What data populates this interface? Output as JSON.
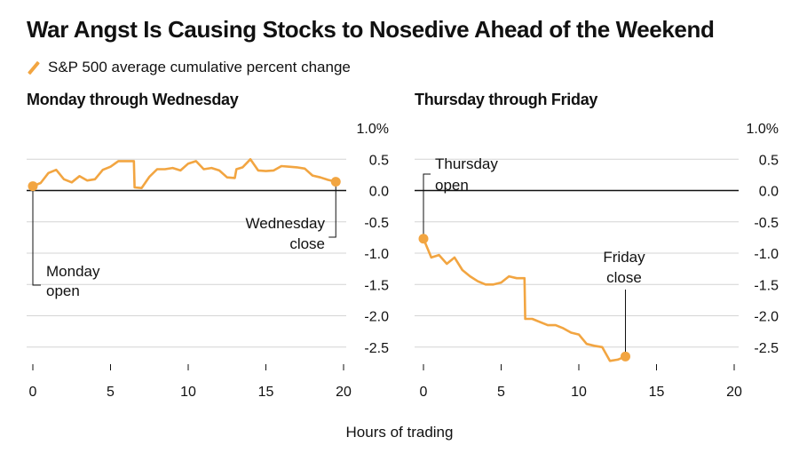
{
  "title": "War Angst Is Causing Stocks to Nosedive Ahead of the Weekend",
  "legend_label": "S&P 500 average cumulative percent change",
  "xaxis_label": "Hours of trading",
  "accent_color": "#f2a541",
  "chart_data": [
    {
      "type": "line",
      "title": "Monday through Wednesday",
      "xlabel": "Hours of trading",
      "ylabel": "",
      "xlim": [
        0,
        20
      ],
      "ylim": [
        -2.5,
        1.0
      ],
      "x_ticks": [
        0,
        5,
        10,
        15,
        20
      ],
      "y_ticks": [
        1.0,
        0.5,
        0.0,
        -0.5,
        -1.0,
        -1.5,
        -2.0,
        -2.5
      ],
      "y_tick_labels": [
        "1.0%",
        "0.5",
        "0.0",
        "-0.5",
        "-1.0",
        "-1.5",
        "-2.0",
        "-2.5"
      ],
      "series": [
        {
          "name": "S&P 500 average cumulative percent change",
          "x": [
            0,
            0.5,
            1.0,
            1.5,
            2.0,
            2.5,
            3.0,
            3.5,
            4.0,
            4.5,
            5.0,
            5.5,
            6.0,
            6.5,
            6.55,
            7.0,
            7.5,
            8.0,
            8.5,
            9.0,
            9.5,
            10.0,
            10.5,
            11.0,
            11.5,
            12.0,
            12.5,
            13.0,
            13.1,
            13.5,
            14.0,
            14.5,
            15.0,
            15.5,
            16.0,
            16.5,
            17.0,
            17.5,
            18.0,
            18.5,
            19.0,
            19.5
          ],
          "values": [
            0.07,
            0.12,
            0.28,
            0.33,
            0.18,
            0.13,
            0.23,
            0.16,
            0.18,
            0.33,
            0.38,
            0.47,
            0.47,
            0.47,
            0.05,
            0.04,
            0.22,
            0.34,
            0.34,
            0.36,
            0.32,
            0.43,
            0.47,
            0.34,
            0.36,
            0.32,
            0.21,
            0.2,
            0.34,
            0.37,
            0.5,
            0.32,
            0.31,
            0.32,
            0.39,
            0.38,
            0.37,
            0.35,
            0.24,
            0.21,
            0.17,
            0.14
          ]
        }
      ],
      "annotations": [
        {
          "text_lines": [
            "Monday",
            "open"
          ],
          "x": 0,
          "y": 0.07
        },
        {
          "text_lines": [
            "Wednesday",
            "close"
          ],
          "x": 19.5,
          "y": 0.14
        }
      ]
    },
    {
      "type": "line",
      "title": "Thursday through Friday",
      "xlabel": "Hours of trading",
      "ylabel": "",
      "xlim": [
        0,
        20
      ],
      "ylim": [
        -2.5,
        1.0
      ],
      "x_ticks": [
        0,
        5,
        10,
        15,
        20
      ],
      "y_ticks": [
        1.0,
        0.5,
        0.0,
        -0.5,
        -1.0,
        -1.5,
        -2.0,
        -2.5
      ],
      "y_tick_labels": [
        "1.0%",
        "0.5",
        "0.0",
        "-0.5",
        "-1.0",
        "-1.5",
        "-2.0",
        "-2.5"
      ],
      "series": [
        {
          "name": "S&P 500 average cumulative percent change",
          "x": [
            0,
            0.5,
            1.0,
            1.5,
            2.0,
            2.5,
            3.0,
            3.5,
            4.0,
            4.5,
            5.0,
            5.5,
            6.0,
            6.5,
            6.55,
            7.0,
            7.5,
            8.0,
            8.5,
            9.0,
            9.5,
            10.0,
            10.5,
            11.0,
            11.5,
            12.0,
            12.5,
            13.0
          ],
          "values": [
            -0.77,
            -1.07,
            -1.03,
            -1.17,
            -1.07,
            -1.27,
            -1.37,
            -1.45,
            -1.5,
            -1.5,
            -1.47,
            -1.37,
            -1.4,
            -1.4,
            -2.05,
            -2.05,
            -2.1,
            -2.15,
            -2.15,
            -2.2,
            -2.27,
            -2.3,
            -2.45,
            -2.48,
            -2.5,
            -2.72,
            -2.7,
            -2.65
          ]
        }
      ],
      "annotations": [
        {
          "text_lines": [
            "Thursday",
            "open"
          ],
          "x": 0,
          "y": -0.77
        },
        {
          "text_lines": [
            "Friday",
            "close"
          ],
          "x": 13.0,
          "y": -2.65
        }
      ]
    }
  ]
}
